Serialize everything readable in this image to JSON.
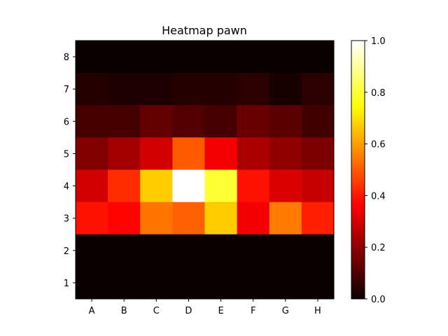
{
  "chart_data": {
    "type": "heatmap",
    "title": "Heatmap pawn",
    "xlabel": "",
    "ylabel": "",
    "x_categories": [
      "A",
      "B",
      "C",
      "D",
      "E",
      "F",
      "G",
      "H"
    ],
    "y_categories": [
      "8",
      "7",
      "6",
      "5",
      "4",
      "3",
      "2",
      "1"
    ],
    "values": [
      [
        0.0,
        0.0,
        0.0,
        0.0,
        0.0,
        0.0,
        0.0,
        0.0
      ],
      [
        0.04,
        0.03,
        0.03,
        0.04,
        0.04,
        0.05,
        0.02,
        0.05
      ],
      [
        0.09,
        0.09,
        0.13,
        0.11,
        0.09,
        0.14,
        0.12,
        0.08
      ],
      [
        0.18,
        0.23,
        0.3,
        0.5,
        0.35,
        0.24,
        0.2,
        0.17
      ],
      [
        0.3,
        0.43,
        0.67,
        1.0,
        0.8,
        0.39,
        0.31,
        0.28
      ],
      [
        0.39,
        0.37,
        0.54,
        0.51,
        0.67,
        0.35,
        0.55,
        0.41
      ],
      [
        0.0,
        0.0,
        0.0,
        0.0,
        0.0,
        0.0,
        0.0,
        0.0
      ],
      [
        0.0,
        0.0,
        0.0,
        0.0,
        0.0,
        0.0,
        0.0,
        0.0
      ]
    ],
    "colormap": "hot",
    "vmin": 0.0,
    "vmax": 1.0,
    "colorbar_ticks": [
      "0.0",
      "0.2",
      "0.4",
      "0.6",
      "0.8",
      "1.0"
    ],
    "colorbar_tick_values": [
      0.0,
      0.2,
      0.4,
      0.6,
      0.8,
      1.0
    ],
    "grid": false
  }
}
